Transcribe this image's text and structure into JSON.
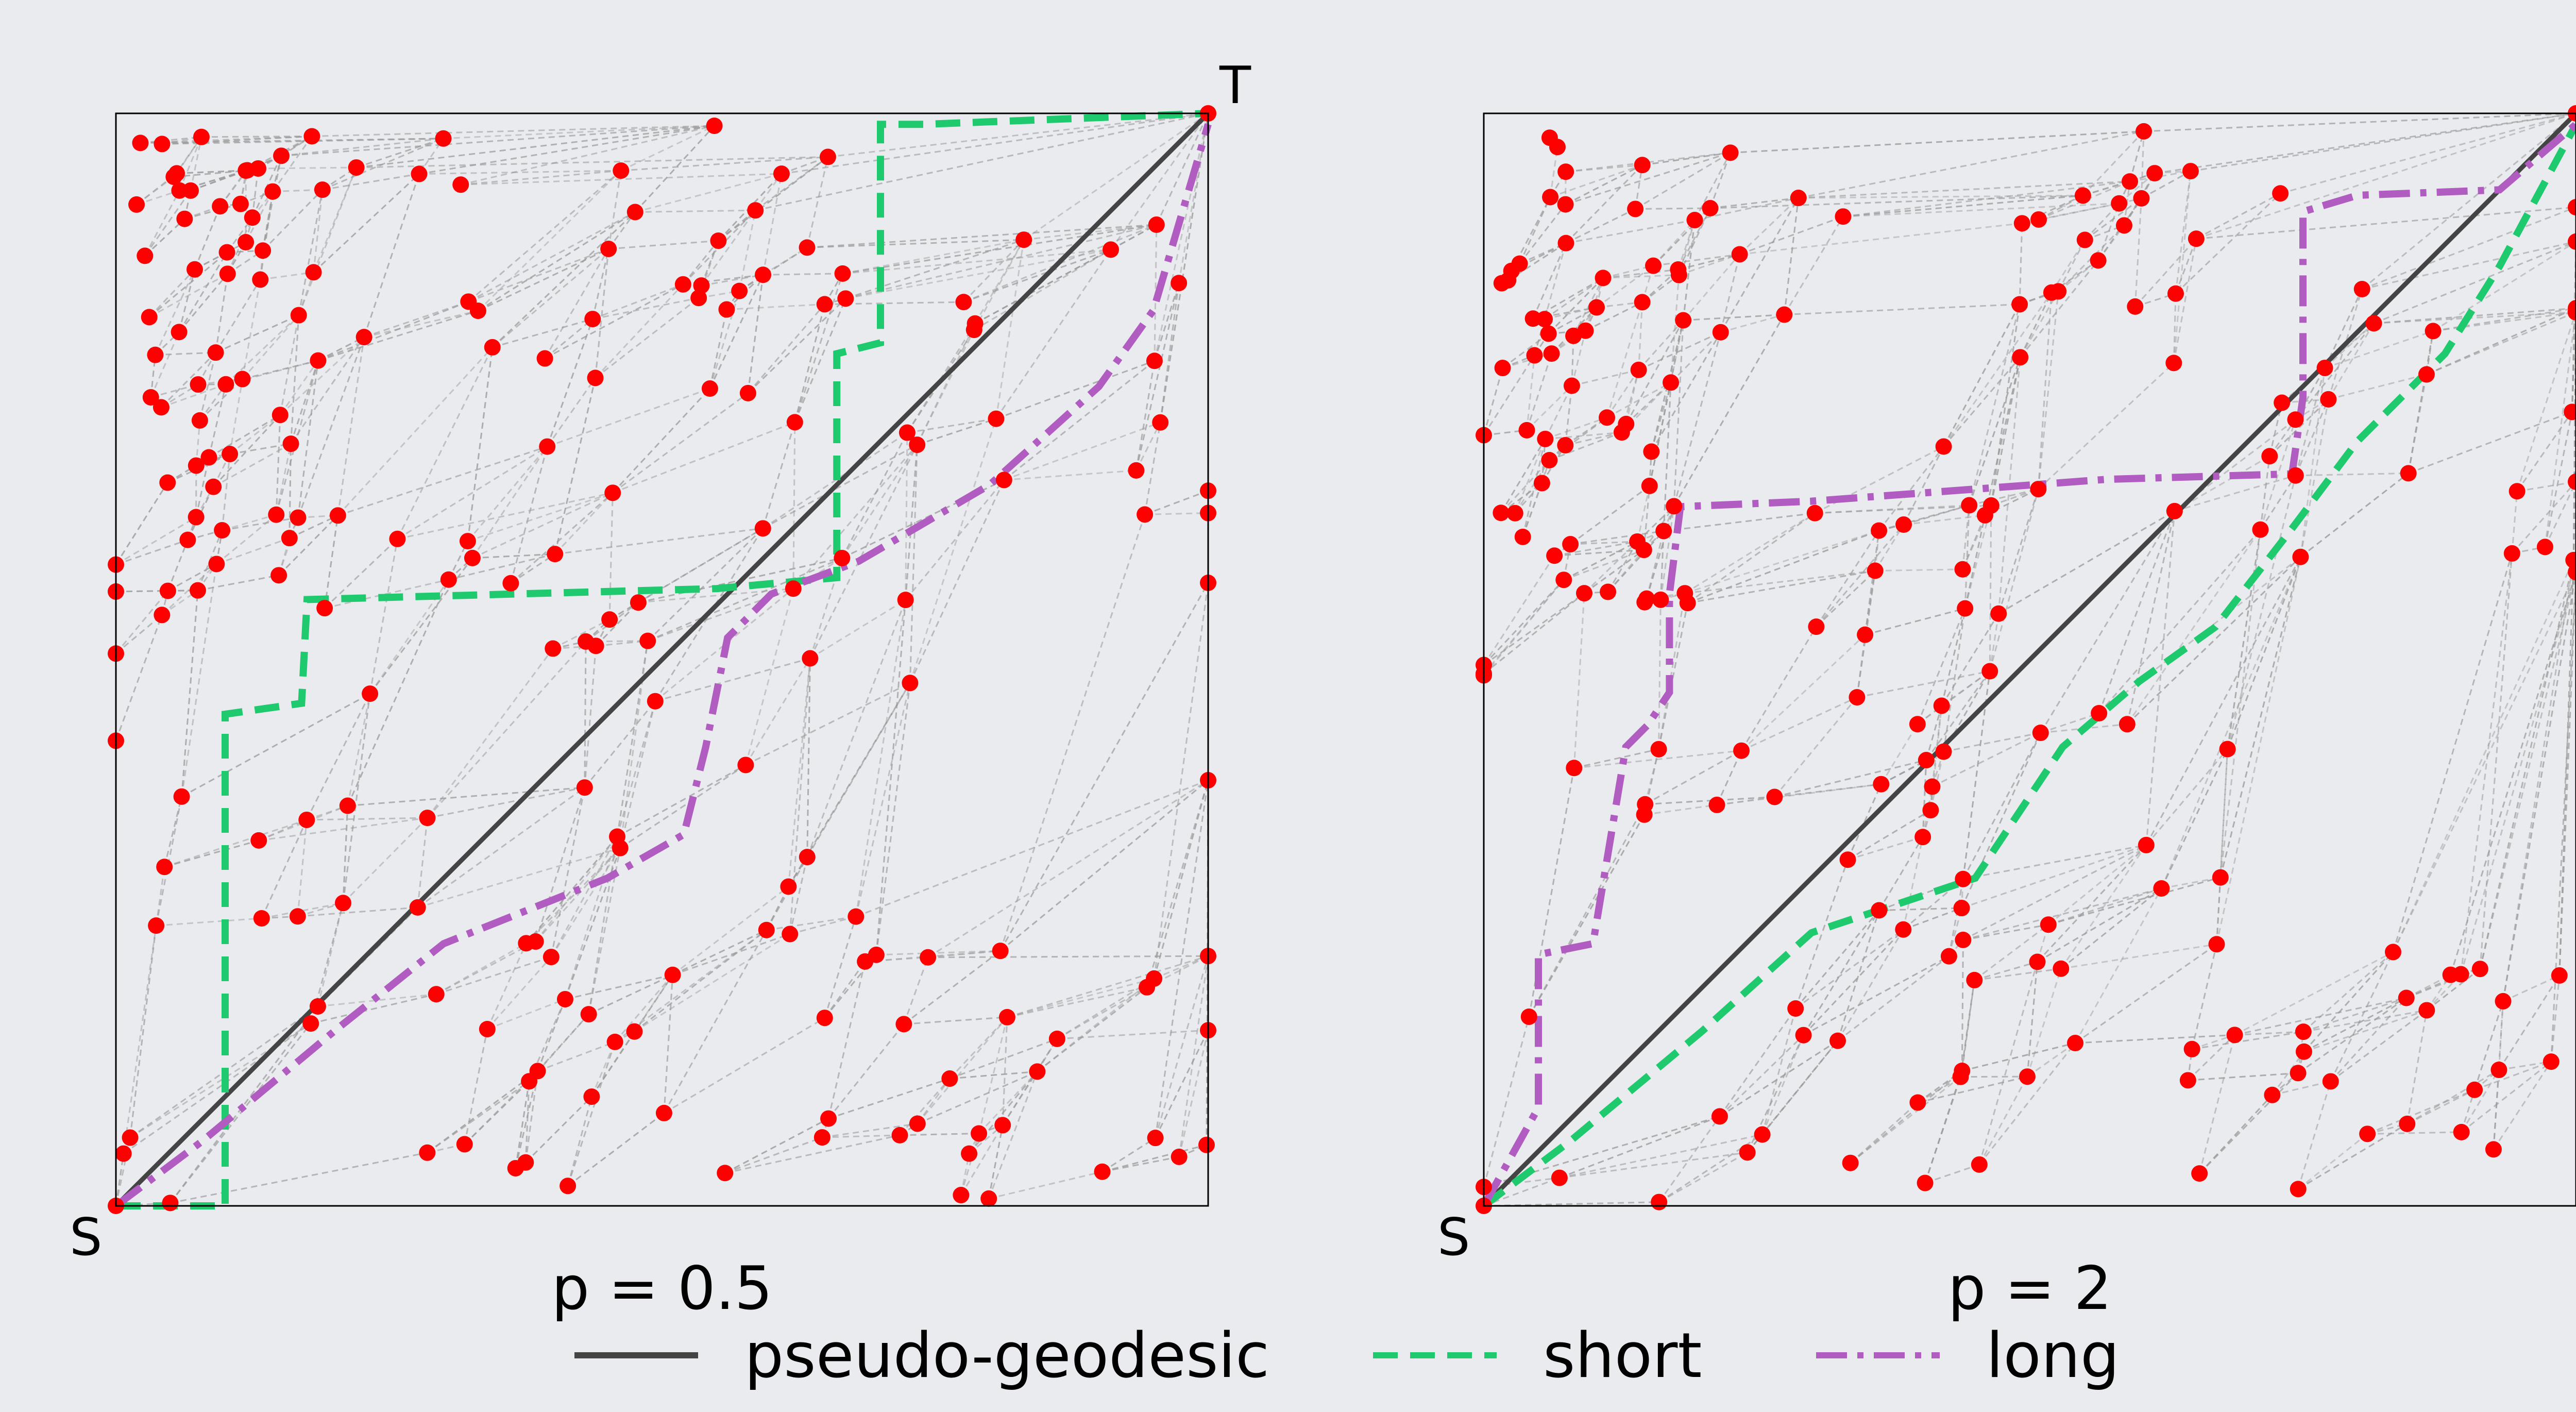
{
  "source_label": "S",
  "target_label": "T",
  "panels": [
    {
      "title": "p = 0.5"
    },
    {
      "title": "p = 2"
    }
  ],
  "legend": [
    {
      "label": "pseudo-geodesic",
      "color": "#444444",
      "dash": "solid"
    },
    {
      "label": "short",
      "color": "#1fca6e",
      "dash": "dashed"
    },
    {
      "label": "long",
      "color": "#b05cc0",
      "dash": "dashdot"
    }
  ],
  "colors": {
    "node": "#ff0000",
    "edge": "#9a9a9a",
    "background": "#eaebef",
    "frame": "#000000"
  },
  "chart_data": [
    {
      "type": "scatter",
      "title": "p = 0.5",
      "xlim": [
        0,
        1
      ],
      "ylim": [
        0,
        1
      ],
      "paths": {
        "short": [
          [
            0,
            0
          ],
          [
            0.1,
            0
          ],
          [
            0.1,
            0.45
          ],
          [
            0.17,
            0.46
          ],
          [
            0.175,
            0.555
          ],
          [
            0.55,
            0.565
          ],
          [
            0.66,
            0.575
          ],
          [
            0.66,
            0.78
          ],
          [
            0.7,
            0.79
          ],
          [
            0.7,
            0.99
          ],
          [
            0.74,
            0.99
          ],
          [
            1,
            1
          ]
        ],
        "long": [
          [
            0,
            0
          ],
          [
            0.08,
            0.06
          ],
          [
            0.2,
            0.16
          ],
          [
            0.3,
            0.24
          ],
          [
            0.45,
            0.3
          ],
          [
            0.52,
            0.34
          ],
          [
            0.54,
            0.42
          ],
          [
            0.56,
            0.52
          ],
          [
            0.6,
            0.56
          ],
          [
            0.68,
            0.59
          ],
          [
            0.8,
            0.66
          ],
          [
            0.9,
            0.75
          ],
          [
            0.95,
            0.82
          ],
          [
            1,
            0.99
          ]
        ]
      }
    },
    {
      "type": "scatter",
      "title": "p = 2",
      "xlim": [
        0,
        1
      ],
      "ylim": [
        0,
        1
      ],
      "paths": {
        "short": [
          [
            0,
            0
          ],
          [
            0.08,
            0.06
          ],
          [
            0.2,
            0.16
          ],
          [
            0.3,
            0.25
          ],
          [
            0.45,
            0.3
          ],
          [
            0.53,
            0.42
          ],
          [
            0.6,
            0.48
          ],
          [
            0.67,
            0.53
          ],
          [
            0.74,
            0.62
          ],
          [
            0.8,
            0.7
          ],
          [
            0.88,
            0.78
          ],
          [
            0.93,
            0.86
          ],
          [
            1,
            0.99
          ]
        ],
        "long": [
          [
            0,
            0
          ],
          [
            0.05,
            0.09
          ],
          [
            0.05,
            0.23
          ],
          [
            0.1,
            0.24
          ],
          [
            0.13,
            0.42
          ],
          [
            0.15,
            0.44
          ],
          [
            0.17,
            0.47
          ],
          [
            0.17,
            0.56
          ],
          [
            0.18,
            0.64
          ],
          [
            0.3,
            0.645
          ],
          [
            0.57,
            0.665
          ],
          [
            0.74,
            0.67
          ],
          [
            0.75,
            0.74
          ],
          [
            0.75,
            0.91
          ],
          [
            0.8,
            0.925
          ],
          [
            0.93,
            0.93
          ],
          [
            1,
            0.99
          ]
        ]
      }
    }
  ]
}
